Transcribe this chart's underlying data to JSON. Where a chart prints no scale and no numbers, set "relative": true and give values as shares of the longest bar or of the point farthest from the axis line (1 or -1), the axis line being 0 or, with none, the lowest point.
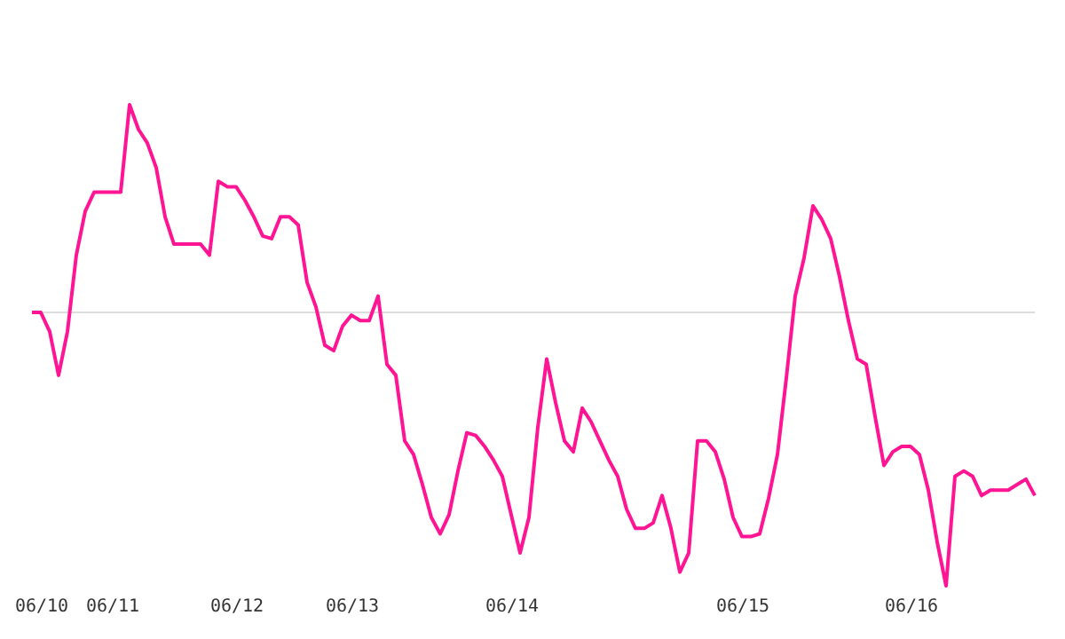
{
  "chart_data": {
    "type": "line",
    "relative": true,
    "categories": [
      null,
      "06/10",
      null,
      null,
      null,
      null,
      null,
      null,
      null,
      "06/11",
      null,
      null,
      null,
      null,
      null,
      null,
      null,
      null,
      null,
      null,
      null,
      null,
      null,
      "06/12",
      null,
      null,
      null,
      null,
      null,
      null,
      null,
      null,
      null,
      null,
      null,
      null,
      "06/13",
      null,
      null,
      null,
      null,
      null,
      null,
      null,
      null,
      null,
      null,
      null,
      null,
      null,
      null,
      null,
      null,
      null,
      "06/14",
      null,
      null,
      null,
      null,
      null,
      null,
      null,
      null,
      null,
      null,
      null,
      null,
      null,
      null,
      null,
      null,
      null,
      null,
      null,
      null,
      null,
      null,
      null,
      null,
      null,
      "06/15",
      null,
      null,
      null,
      null,
      null,
      null,
      null,
      null,
      null,
      null,
      null,
      null,
      null,
      null,
      null,
      null,
      null,
      null,
      "06/16",
      null,
      null,
      null,
      null,
      null,
      null,
      null,
      null,
      null,
      null,
      null,
      null,
      null,
      null
    ],
    "series": [
      {
        "color": "#ff1493",
        "values": [
          0,
          0,
          -0.07,
          -0.23,
          -0.07,
          0.21,
          0.37,
          0.44,
          0.44,
          0.44,
          0.44,
          0.76,
          0.67,
          0.62,
          0.53,
          0.35,
          0.25,
          0.25,
          0.25,
          0.25,
          0.21,
          0.48,
          0.46,
          0.46,
          0.41,
          0.35,
          0.28,
          0.27,
          0.35,
          0.35,
          0.32,
          0.11,
          0.02,
          -0.12,
          -0.14,
          -0.05,
          -0.01,
          -0.03,
          -0.03,
          0.06,
          -0.19,
          -0.23,
          -0.47,
          -0.52,
          -0.63,
          -0.75,
          -0.81,
          -0.74,
          -0.58,
          -0.44,
          -0.45,
          -0.49,
          -0.54,
          -0.6,
          -0.74,
          -0.88,
          -0.75,
          -0.42,
          -0.17,
          -0.33,
          -0.47,
          -0.51,
          -0.35,
          -0.4,
          -0.47,
          -0.54,
          -0.6,
          -0.72,
          -0.79,
          -0.79,
          -0.77,
          -0.67,
          -0.79,
          -0.95,
          -0.88,
          -0.47,
          -0.47,
          -0.51,
          -0.61,
          -0.75,
          -0.82,
          -0.82,
          -0.81,
          -0.68,
          -0.52,
          -0.24,
          0.06,
          0.2,
          0.39,
          0.34,
          0.27,
          0.13,
          -0.03,
          -0.17,
          -0.19,
          -0.38,
          -0.56,
          -0.51,
          -0.49,
          -0.49,
          -0.52,
          -0.65,
          -0.84,
          -1.0,
          -0.6,
          -0.58,
          -0.6,
          -0.67,
          -0.65,
          -0.65,
          -0.65,
          -0.63,
          -0.61,
          -0.67
        ]
      }
    ],
    "grid": false,
    "marker": "none",
    "line_style": "solid"
  }
}
